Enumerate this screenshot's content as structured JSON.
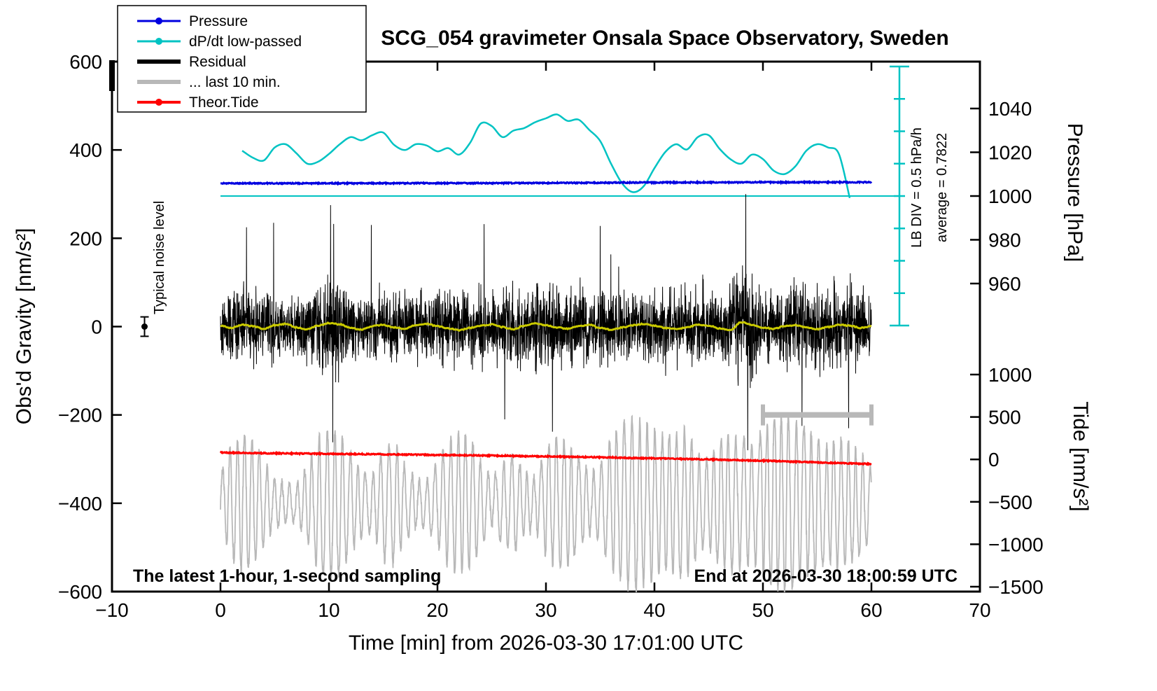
{
  "chart_data": {
    "type": "line",
    "title": "SCG_054 gravimeter Onsala Space Observatory, Sweden",
    "xlabel": "Time [min] from 2026-03-30 17:01:00 UTC",
    "x_range": [
      -10,
      70
    ],
    "x_ticks": [
      -10,
      0,
      10,
      20,
      30,
      40,
      50,
      60,
      70
    ],
    "grid": "off",
    "legend_position": "top-left",
    "axes": {
      "gravity": {
        "label": "Obs'd Gravity [nm/s²]",
        "range": [
          -600,
          600
        ],
        "ticks": [
          -600,
          -400,
          -200,
          0,
          200,
          400,
          600
        ]
      },
      "pressure": {
        "label": "Pressure [hPa]",
        "ticks": [
          960,
          980,
          1000,
          1020,
          1040
        ]
      },
      "tide": {
        "label": "Tide [nm/s²]",
        "ticks": [
          -1500,
          -1000,
          -500,
          0,
          500,
          1000
        ]
      }
    },
    "legend": [
      {
        "label": "Pressure",
        "color": "#0000e0",
        "style": "line-dot"
      },
      {
        "label": "dP/dt low-passed",
        "color": "#00c3c3",
        "style": "line-dot"
      },
      {
        "label": "Residual",
        "color": "#000000",
        "style": "line"
      },
      {
        "label": "... last 10 min.",
        "color": "#b8b8b8",
        "style": "line"
      },
      {
        "label": "Theor.Tide",
        "color": "#ff0000",
        "style": "line-dot"
      }
    ],
    "annotations": {
      "noise_label": "Typical noise level",
      "lb_div": "LB DIV = 0.5 hPa/h",
      "average": "average = 0.7822",
      "bottom_left": "The latest 1-hour, 1-second sampling",
      "bottom_right": "End at 2026-03-30 18:00:59 UTC",
      "pressure_ref_hPa": 1000,
      "dpdt_div_hPa_per_h": 0.5,
      "gray_bar": {
        "from_min": 50,
        "to_min": 60,
        "gravity": -200
      },
      "noise_marker": {
        "t": -7,
        "gravity": 0,
        "error": 22
      }
    },
    "series": [
      {
        "name": "Pressure",
        "unit": "hPa",
        "axis": "pressure",
        "color": "#0000e0",
        "render": "fuzzy",
        "x_start": 0,
        "x_step": 5,
        "values": [
          1005.8,
          1005.8,
          1005.82,
          1005.85,
          1005.85,
          1005.9,
          1005.95,
          1006.1,
          1006.2,
          1006.25,
          1006.3,
          1006.3,
          1006.32
        ]
      },
      {
        "name": "dP/dt low-passed",
        "unit": "hPa/h",
        "axis": "dpdt",
        "color": "#00c3c3",
        "render": "smooth",
        "x_start": 2,
        "x_step": 1,
        "values": [
          0.7,
          0.59,
          0.55,
          0.75,
          0.8,
          0.66,
          0.5,
          0.53,
          0.65,
          0.8,
          0.91,
          0.86,
          0.94,
          0.98,
          0.79,
          0.71,
          0.8,
          0.78,
          0.69,
          0.74,
          0.64,
          0.82,
          1.12,
          1.08,
          0.91,
          1.01,
          1.05,
          1.14,
          1.2,
          1.26,
          1.16,
          1.18,
          1.02,
          0.85,
          0.5,
          0.2,
          0.06,
          0.15,
          0.43,
          0.68,
          0.8,
          0.72,
          0.91,
          0.94,
          0.73,
          0.57,
          0.5,
          0.64,
          0.57,
          0.39,
          0.34,
          0.46,
          0.7,
          0.8,
          0.75,
          0.65,
          -0.03
        ]
      },
      {
        "name": "Residual",
        "unit": "nm/s²",
        "axis": "gravity",
        "color": "#000000",
        "render": "noise",
        "x_range": [
          0,
          60
        ],
        "sampling_s": 1,
        "seed": 42,
        "envelope_per_min": [
          70,
          95,
          100,
          92,
          85,
          95,
          80,
          72,
          78,
          95,
          135,
          125,
          82,
          78,
          85,
          95,
          88,
          82,
          80,
          85,
          90,
          100,
          95,
          98,
          100,
          80,
          85,
          92,
          95,
          100,
          108,
          95,
          100,
          105,
          92,
          88,
          98,
          88,
          84,
          90,
          95,
          100,
          90,
          95,
          100,
          85,
          80,
          92,
          150,
          135,
          88,
          84,
          95,
          100,
          110,
          105,
          100,
          112,
          108,
          100,
          95
        ],
        "spikes": [
          {
            "t": 2.4,
            "v": 225
          },
          {
            "t": 4.9,
            "v": 235
          },
          {
            "t": 10.15,
            "v": 275
          },
          {
            "t": 10.35,
            "v": -262
          },
          {
            "t": 13.9,
            "v": 230
          },
          {
            "t": 24.3,
            "v": 232
          },
          {
            "t": 26.2,
            "v": -210
          },
          {
            "t": 30.6,
            "v": -238
          },
          {
            "t": 35.0,
            "v": 228
          },
          {
            "t": 48.42,
            "v": 300
          },
          {
            "t": 48.6,
            "v": -280
          },
          {
            "t": 53.6,
            "v": -225
          },
          {
            "t": 57.9,
            "v": -230
          }
        ]
      },
      {
        "name": "Residual low-passed",
        "unit": "nm/s²",
        "axis": "gravity",
        "color": "#c9c900",
        "render": "smooth-fuzzy",
        "x_start": 0,
        "x_step": 1,
        "values": [
          2,
          -3,
          4,
          1,
          -5,
          3,
          6,
          -2,
          -6,
          2,
          8,
          5,
          -3,
          -7,
          1,
          4,
          -2,
          -5,
          3,
          6,
          1,
          -4,
          -8,
          -3,
          2,
          5,
          -1,
          -6,
          2,
          7,
          3,
          -2,
          -5,
          1,
          4,
          -3,
          -7,
          -2,
          3,
          6,
          2,
          -3,
          -6,
          -1,
          4,
          2,
          -4,
          -8,
          10,
          4,
          -2,
          -5,
          1,
          3,
          -2,
          -6,
          -1,
          4,
          2,
          -3,
          1
        ]
      },
      {
        "name": "... last 10 min.",
        "unit": "nm/s²",
        "axis": "gravity",
        "color": "#b8b8b8",
        "render": "oscillation",
        "x_range": [
          0,
          60
        ],
        "center": -400,
        "freq_cpm": 1.45,
        "seed": 7,
        "clip": [
          -600,
          -178
        ],
        "envelope_per_min": [
          60,
          130,
          155,
          140,
          95,
          55,
          45,
          40,
          85,
          150,
          170,
          160,
          115,
          75,
          60,
          130,
          140,
          85,
          55,
          50,
          95,
          145,
          160,
          150,
          95,
          55,
          90,
          110,
          75,
          60,
          120,
          150,
          140,
          105,
          70,
          85,
          150,
          180,
          200,
          190,
          170,
          150,
          160,
          170,
          115,
          100,
          140,
          160,
          150,
          130,
          170,
          190,
          200,
          190,
          170,
          150,
          130,
          150,
          140,
          115,
          80
        ]
      },
      {
        "name": "Theor.Tide",
        "unit": "nm/s² (tide axis)",
        "axis": "tide",
        "color": "#ff0000",
        "render": "fuzzy",
        "x_start": 0,
        "x_step": 5,
        "values": [
          80,
          72,
          66,
          60,
          52,
          45,
          35,
          25,
          12,
          0,
          -15,
          -35,
          -55
        ]
      }
    ]
  }
}
